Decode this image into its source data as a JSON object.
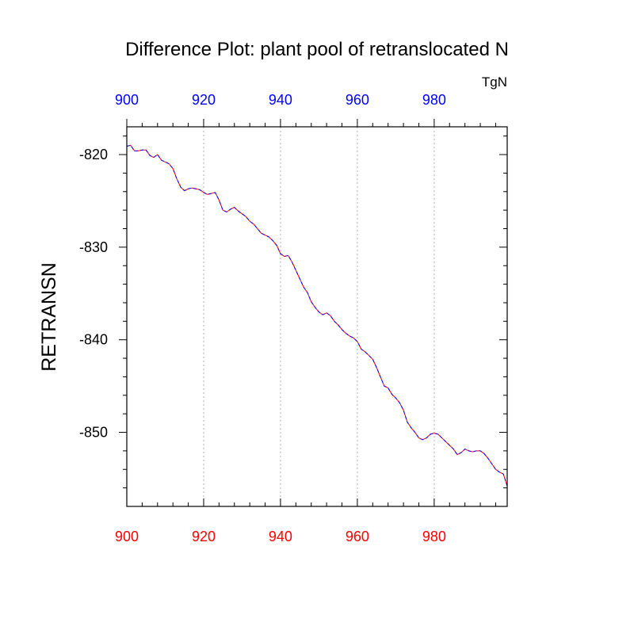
{
  "chart_data": {
    "type": "line",
    "title": "Difference Plot: plant pool of retranslocated N",
    "units_label": "TgN",
    "ylabel": "RETRANSN",
    "xlabel": "",
    "xlim": [
      900,
      999
    ],
    "ylim": [
      -858,
      -817
    ],
    "x_ticks": [
      900,
      920,
      940,
      960,
      980
    ],
    "y_ticks": [
      -820,
      -830,
      -840,
      -850
    ],
    "x_tick_labels": [
      "900",
      "920",
      "940",
      "960",
      "980"
    ],
    "y_tick_labels": [
      "-820",
      "-830",
      "-840",
      "-850"
    ],
    "grid": "vertical dotted at major x ticks",
    "colors": {
      "top_axis_labels": "#0000ff",
      "bottom_axis_labels": "#ff0000",
      "series_dashed": "#0000ff",
      "series_solid": "#ff0000",
      "text": "#000000"
    },
    "series": [
      {
        "style": "solid",
        "x": [
          900,
          901,
          902,
          903,
          904,
          905,
          906,
          907,
          908,
          909,
          910,
          911,
          912,
          913,
          914,
          915,
          916,
          917,
          918,
          919,
          920,
          921,
          922,
          923,
          924,
          925,
          926,
          927,
          928,
          929,
          930,
          931,
          932,
          933,
          934,
          935,
          936,
          937,
          938,
          939,
          940,
          941,
          942,
          943,
          944,
          945,
          946,
          947,
          948,
          949,
          950,
          951,
          952,
          953,
          954,
          955,
          956,
          957,
          958,
          959,
          960,
          961,
          962,
          963,
          964,
          965,
          966,
          967,
          968,
          969,
          970,
          971,
          972,
          973,
          974,
          975,
          976,
          977,
          978,
          979,
          980,
          981,
          982,
          983,
          984,
          985,
          986,
          987,
          988,
          989,
          990,
          991,
          992,
          993,
          994,
          995,
          996,
          997,
          998,
          999
        ],
        "y": [
          -819.1,
          -819.0,
          -819.6,
          -819.6,
          -819.5,
          -819.5,
          -820.1,
          -820.3,
          -820.0,
          -820.6,
          -820.8,
          -821.0,
          -821.5,
          -822.6,
          -823.5,
          -823.9,
          -823.7,
          -823.6,
          -823.7,
          -823.8,
          -824.1,
          -824.3,
          -824.2,
          -824.1,
          -824.9,
          -826.0,
          -826.2,
          -825.9,
          -825.7,
          -826.1,
          -826.4,
          -826.7,
          -827.2,
          -827.5,
          -828.0,
          -828.5,
          -828.7,
          -828.9,
          -829.3,
          -829.8,
          -830.7,
          -831.0,
          -830.9,
          -831.6,
          -832.5,
          -833.4,
          -834.3,
          -834.9,
          -835.9,
          -836.5,
          -837.0,
          -837.3,
          -837.1,
          -837.4,
          -838.0,
          -838.4,
          -838.9,
          -839.3,
          -839.6,
          -839.8,
          -840.2,
          -841.0,
          -841.3,
          -841.7,
          -842.1,
          -843.0,
          -844.0,
          -845.0,
          -845.2,
          -845.9,
          -846.3,
          -846.8,
          -847.6,
          -848.9,
          -849.5,
          -850.0,
          -850.6,
          -850.8,
          -850.6,
          -850.2,
          -850.1,
          -850.2,
          -850.6,
          -851.0,
          -851.4,
          -851.8,
          -852.4,
          -852.2,
          -851.8,
          -852.0,
          -852.1,
          -852.0,
          -852.0,
          -852.3,
          -852.8,
          -853.4,
          -854.0,
          -854.3,
          -854.5,
          -855.8
        ]
      },
      {
        "style": "dashed",
        "x": [
          900,
          901,
          902,
          903,
          904,
          905,
          906,
          907,
          908,
          909,
          910,
          911,
          912,
          913,
          914,
          915,
          916,
          917,
          918,
          919,
          920,
          921,
          922,
          923,
          924,
          925,
          926,
          927,
          928,
          929,
          930,
          931,
          932,
          933,
          934,
          935,
          936,
          937,
          938,
          939,
          940,
          941,
          942,
          943,
          944,
          945,
          946,
          947,
          948,
          949,
          950,
          951,
          952,
          953,
          954,
          955,
          956,
          957,
          958,
          959,
          960,
          961,
          962,
          963,
          964,
          965,
          966,
          967,
          968,
          969,
          970,
          971,
          972,
          973,
          974,
          975,
          976,
          977,
          978,
          979,
          980,
          981,
          982,
          983,
          984,
          985,
          986,
          987,
          988,
          989,
          990,
          991,
          992,
          993,
          994,
          995,
          996,
          997,
          998,
          999
        ],
        "y": [
          -819.1,
          -819.0,
          -819.6,
          -819.6,
          -819.5,
          -819.5,
          -820.1,
          -820.3,
          -820.0,
          -820.6,
          -820.8,
          -821.0,
          -821.5,
          -822.6,
          -823.5,
          -823.9,
          -823.7,
          -823.6,
          -823.7,
          -823.8,
          -824.1,
          -824.3,
          -824.2,
          -824.1,
          -824.9,
          -826.0,
          -826.2,
          -825.9,
          -825.7,
          -826.1,
          -826.4,
          -826.7,
          -827.2,
          -827.5,
          -828.0,
          -828.5,
          -828.7,
          -828.9,
          -829.3,
          -829.8,
          -830.7,
          -831.0,
          -830.9,
          -831.6,
          -832.5,
          -833.4,
          -834.3,
          -834.9,
          -835.9,
          -836.5,
          -837.0,
          -837.3,
          -837.1,
          -837.4,
          -838.0,
          -838.4,
          -838.9,
          -839.3,
          -839.6,
          -839.8,
          -840.2,
          -841.0,
          -841.3,
          -841.7,
          -842.1,
          -843.0,
          -844.0,
          -845.0,
          -845.2,
          -845.9,
          -846.3,
          -846.8,
          -847.6,
          -848.9,
          -849.5,
          -850.0,
          -850.6,
          -850.8,
          -850.6,
          -850.2,
          -850.1,
          -850.2,
          -850.6,
          -851.0,
          -851.4,
          -851.8,
          -852.4,
          -852.2,
          -851.8,
          -852.0,
          -852.1,
          -852.0,
          -852.0,
          -852.3,
          -852.8,
          -853.4,
          -854.0,
          -854.3,
          -854.5,
          -855.8
        ]
      }
    ]
  }
}
